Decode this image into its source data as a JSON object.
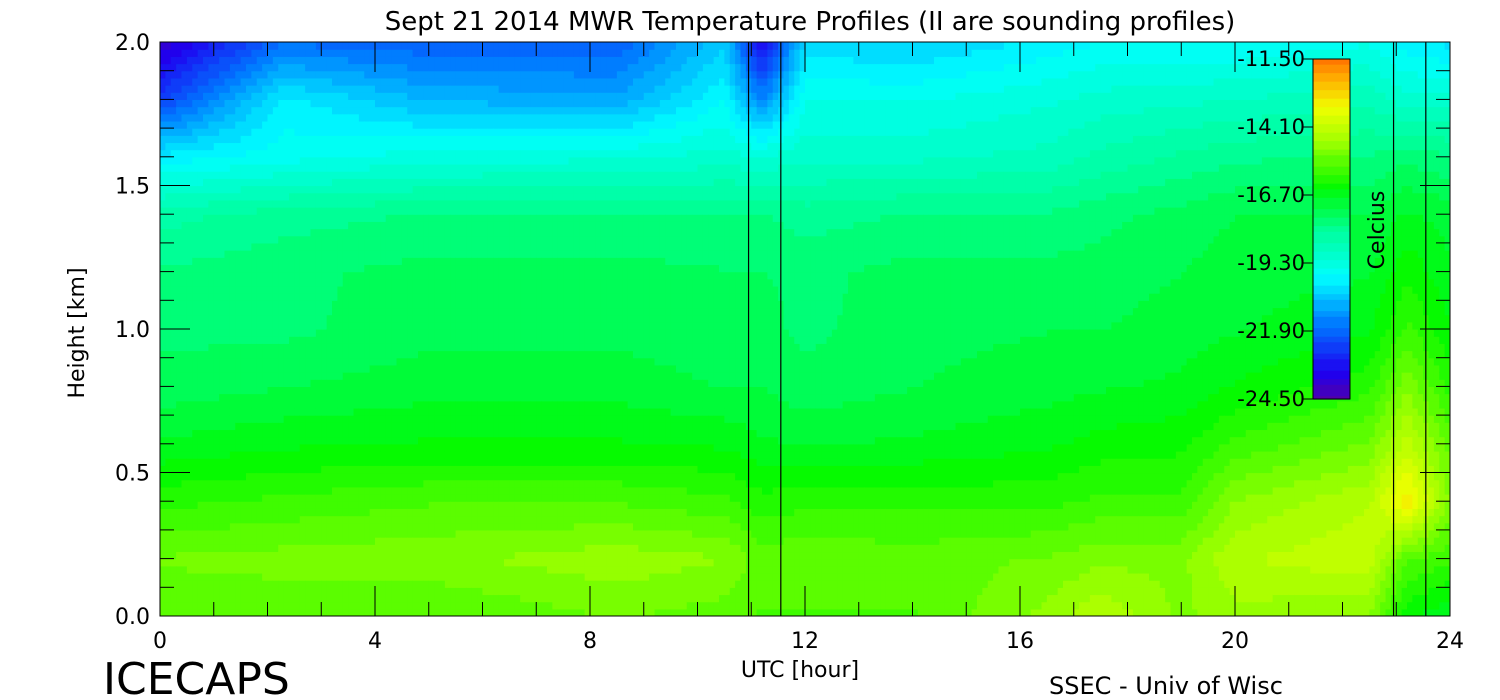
{
  "chart_data": {
    "type": "heatmap",
    "title": "Sept 21 2014 MWR Temperature Profiles (II are sounding profiles)",
    "xlabel": "UTC [hour]",
    "ylabel": "Height [km]",
    "xlim": [
      0,
      24
    ],
    "ylim": [
      0.0,
      2.0
    ],
    "x_ticks": [
      "0",
      "4",
      "8",
      "12",
      "16",
      "20",
      "24"
    ],
    "y_ticks": [
      "0.0",
      "0.5",
      "1.0",
      "1.5",
      "2.0"
    ],
    "colorbar": {
      "label": "Celcius",
      "range": [
        -24.5,
        -11.5
      ],
      "ticks": [
        "-11.50",
        "-14.10",
        "-16.70",
        "-19.30",
        "-21.90",
        "-24.50"
      ]
    },
    "sounding_profiles": [
      {
        "start_hour": 10.95,
        "end_hour": 11.55
      },
      {
        "start_hour": 22.95,
        "end_hour": 23.55
      }
    ],
    "profile_columns": [
      {
        "x": 0,
        "values": [
          -15.5,
          -15.2,
          -16.0,
          -16.8,
          -17.4,
          -17.6,
          -17.8,
          -18.3,
          -20.0,
          -22.5,
          -24.0
        ]
      },
      {
        "x": 2.3,
        "values": [
          -15.5,
          -15.1,
          -15.8,
          -16.6,
          -17.2,
          -17.6,
          -17.6,
          -18.0,
          -19.6,
          -20.0,
          -21.8
        ]
      },
      {
        "x": 5,
        "values": [
          -15.6,
          -15.0,
          -15.6,
          -16.5,
          -17.0,
          -17.3,
          -17.4,
          -17.8,
          -19.3,
          -20.8,
          -22.0
        ]
      },
      {
        "x": 8.5,
        "values": [
          -15.2,
          -14.7,
          -15.6,
          -16.5,
          -17.0,
          -17.3,
          -17.4,
          -17.8,
          -19.2,
          -21.0,
          -22.0
        ]
      },
      {
        "x": 10.5,
        "values": [
          -15.4,
          -14.9,
          -15.8,
          -16.6,
          -17.2,
          -17.4,
          -17.5,
          -17.8,
          -19.0,
          -19.8,
          -20.5
        ]
      },
      {
        "x": 11.2,
        "values": [
          -15.6,
          -15.4,
          -16.1,
          -16.8,
          -17.2,
          -17.4,
          -17.5,
          -17.8,
          -19.1,
          -21.5,
          -23.5
        ]
      },
      {
        "x": 12,
        "values": [
          -15.6,
          -15.3,
          -16.0,
          -16.9,
          -17.4,
          -17.6,
          -17.6,
          -18.0,
          -18.9,
          -19.5,
          -20.3
        ]
      },
      {
        "x": 14,
        "values": [
          -15.6,
          -15.4,
          -16.0,
          -16.8,
          -17.2,
          -17.3,
          -17.4,
          -17.8,
          -18.9,
          -19.5,
          -20.5
        ]
      },
      {
        "x": 16.5,
        "values": [
          -14.8,
          -15.2,
          -16.0,
          -16.6,
          -17.0,
          -17.2,
          -17.4,
          -17.8,
          -18.7,
          -19.2,
          -20.0
        ]
      },
      {
        "x": 17.5,
        "values": [
          -14.3,
          -15.0,
          -15.8,
          -16.4,
          -16.9,
          -17.2,
          -17.4,
          -17.6,
          -18.4,
          -19.0,
          -19.8
        ]
      },
      {
        "x": 19,
        "values": [
          -15.0,
          -15.0,
          -15.8,
          -16.3,
          -16.8,
          -17.0,
          -17.2,
          -17.4,
          -18.1,
          -18.9,
          -19.8
        ]
      },
      {
        "x": 20,
        "values": [
          -14.7,
          -14.3,
          -14.9,
          -15.8,
          -16.5,
          -16.9,
          -17.0,
          -17.2,
          -17.9,
          -18.8,
          -19.8
        ]
      },
      {
        "x": 22.5,
        "values": [
          -14.9,
          -14.0,
          -14.3,
          -15.2,
          -16.0,
          -16.6,
          -16.9,
          -17.2,
          -17.8,
          -18.6,
          -19.5
        ]
      },
      {
        "x": 23.2,
        "values": [
          -16.5,
          -15.5,
          -13.0,
          -14.1,
          -15.0,
          -15.8,
          -16.3,
          -16.8,
          -17.6,
          -19.0,
          -20.0
        ]
      },
      {
        "x": 24,
        "values": [
          -16.8,
          -15.8,
          -15.0,
          -15.4,
          -16.0,
          -16.5,
          -16.8,
          -17.0,
          -17.8,
          -19.0,
          -20.2
        ]
      }
    ],
    "profile_heights": [
      0.0,
      0.2,
      0.4,
      0.6,
      0.8,
      1.0,
      1.2,
      1.4,
      1.6,
      1.8,
      2.0
    ]
  },
  "footer": {
    "brand": "ICECAPS",
    "credit": "SSEC - Univ of Wisc"
  }
}
